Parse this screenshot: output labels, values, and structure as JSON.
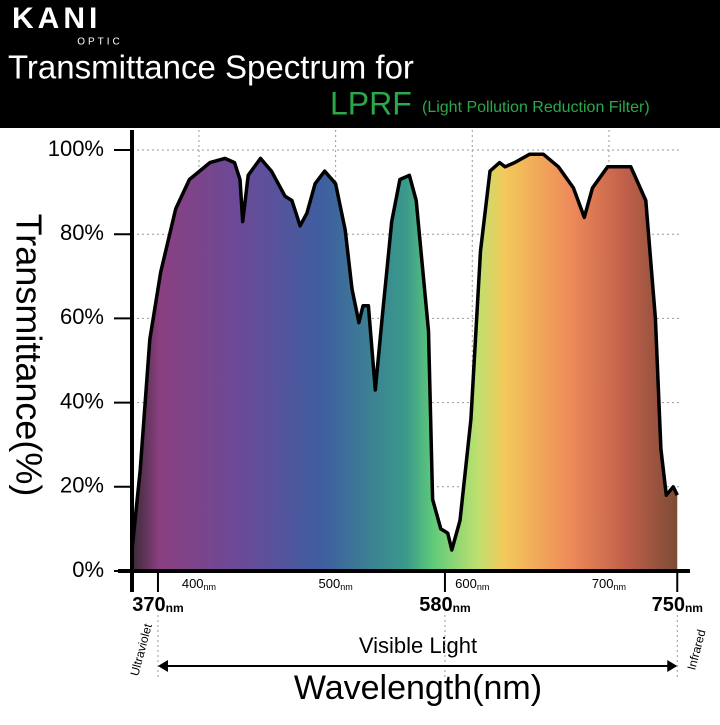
{
  "brand": "KANI",
  "brand_sub": "OPTIC",
  "chart_data": {
    "type": "area",
    "title": "Transmittance Spectrum for",
    "subtitle": "LPRF",
    "subtitle_note": "(Light Pollution Reduction Filter)",
    "y_label": "Transmittance(%)",
    "x_label": "Wavelength(nm)",
    "x_unit": "nm",
    "band_label": "Visible Light",
    "left_label": "Ultraviolet",
    "right_label": "Infrared",
    "xlim": [
      351,
      752
    ],
    "ylim": [
      0,
      100
    ],
    "xticks": [
      400,
      500,
      600,
      700
    ],
    "major_xticks": [
      370,
      580,
      750
    ],
    "yticks": [
      {
        "value": 0,
        "label": "0%"
      },
      {
        "value": 20,
        "label": "20%"
      },
      {
        "value": 40,
        "label": "40%"
      },
      {
        "value": 60,
        "label": "60%"
      },
      {
        "value": 80,
        "label": "80%"
      },
      {
        "value": 100,
        "label": "100%"
      }
    ],
    "grid": true,
    "x": [
      351,
      357,
      364,
      372,
      383,
      393,
      408,
      419,
      426,
      430,
      432,
      436,
      445,
      453,
      463,
      468,
      474,
      479,
      485,
      492,
      500,
      507,
      512,
      517,
      520,
      524,
      529,
      534,
      541,
      547,
      554,
      559,
      568,
      571,
      577,
      582,
      585,
      591,
      599,
      606,
      613,
      620,
      624,
      631,
      642,
      652,
      663,
      674,
      682,
      688,
      699,
      716,
      727,
      734,
      738,
      742,
      747,
      750
    ],
    "values": [
      5,
      24,
      55,
      71,
      86,
      93,
      97,
      98,
      97,
      93,
      83,
      94,
      98,
      95,
      89,
      88,
      82,
      85,
      92,
      95,
      92,
      81,
      67,
      59,
      63,
      63,
      43,
      60,
      83,
      93,
      94,
      88,
      57,
      17,
      10,
      9,
      5,
      12,
      36,
      76,
      95,
      97,
      96,
      97,
      99,
      99,
      96,
      91,
      84,
      91,
      96,
      96,
      88,
      60,
      29,
      18,
      20,
      18
    ]
  }
}
